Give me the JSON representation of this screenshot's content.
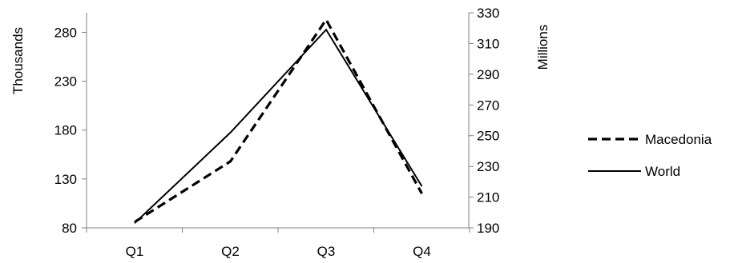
{
  "chart_data": {
    "type": "line",
    "categories": [
      "Q1",
      "Q2",
      "Q3",
      "Q4"
    ],
    "series": [
      {
        "name": "Macedonia",
        "axis": "left",
        "values": [
          86,
          148,
          293,
          115
        ],
        "line_style": "dashed",
        "color": "#000000"
      },
      {
        "name": "World",
        "axis": "right",
        "values": [
          193,
          252,
          319,
          217
        ],
        "line_style": "solid",
        "color": "#000000"
      }
    ],
    "y_left": {
      "label": "Thousands",
      "ylim": [
        80,
        300
      ],
      "ticks": [
        "80",
        "130",
        "180",
        "230",
        "280"
      ]
    },
    "y_right": {
      "label": "Millions",
      "ylim": [
        190,
        330
      ],
      "ticks": [
        "190",
        "210",
        "230",
        "250",
        "270",
        "290",
        "310",
        "330"
      ]
    },
    "grid": false,
    "legend_position": "right"
  }
}
